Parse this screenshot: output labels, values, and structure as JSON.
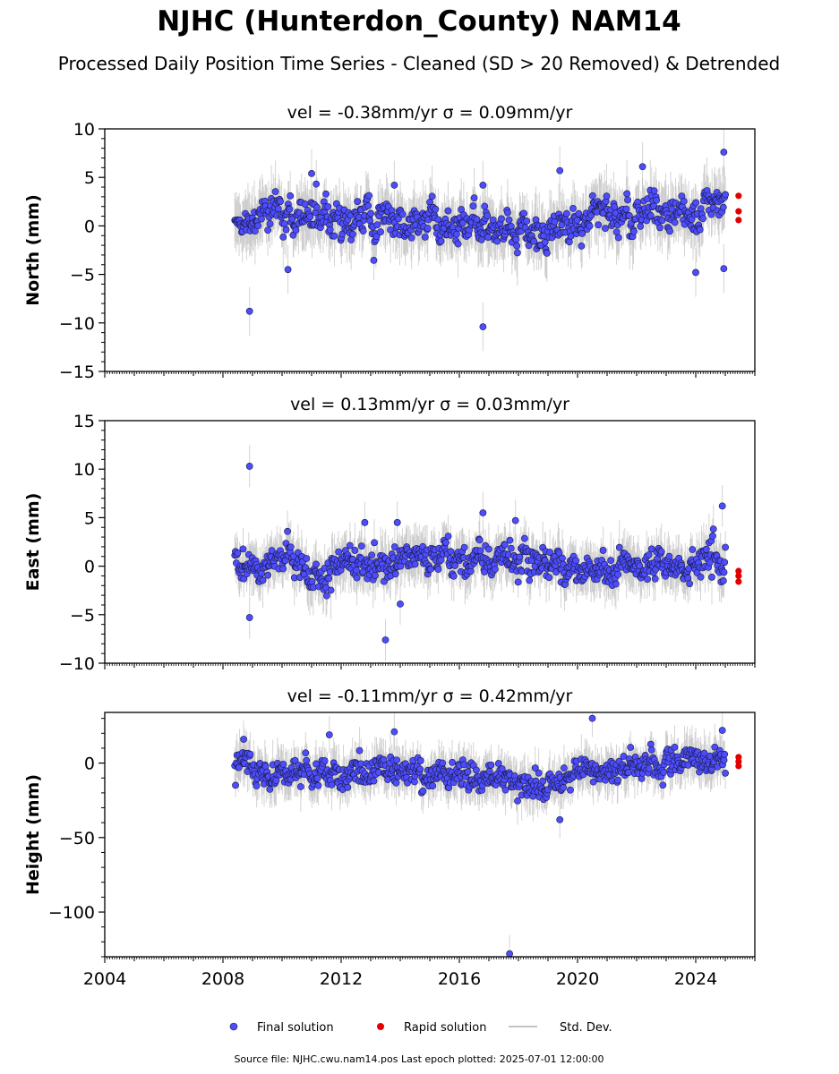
{
  "figure": {
    "title": "NJHC (Hunterdon_County) NAM14",
    "subtitle": "Processed Daily Position Time Series - Cleaned (SD > 20 Removed) & Detrended",
    "footer": "Source file: NJHC.cwu.nam14.pos  Last epoch plotted: 2025-07-01 12:00:00"
  },
  "legend": {
    "final": "Final solution",
    "rapid": "Rapid solution",
    "std": "Std. Dev."
  },
  "colors": {
    "final_fill": "#4d4dff",
    "final_edge": "#1a1a40",
    "rapid": "#e00000",
    "std": "#b0b0b0"
  },
  "chart_data": [
    {
      "type": "scatter",
      "title": "vel = -0.38mm/yr   σ = 0.09mm/yr",
      "ylabel": "North (mm)",
      "xlim": [
        2004.0,
        2026.0
      ],
      "ylim": [
        -15,
        10
      ],
      "yticks": [
        -15,
        -10,
        -5,
        0,
        5,
        10
      ],
      "final_span": [
        2008.4,
        2025.0
      ],
      "final_baseline": [
        [
          2008.4,
          1.0
        ],
        [
          2010.0,
          1.6
        ],
        [
          2012.0,
          0.3
        ],
        [
          2014.0,
          0.1
        ],
        [
          2016.0,
          -0.2
        ],
        [
          2017.5,
          -0.5
        ],
        [
          2019.0,
          -0.6
        ],
        [
          2020.0,
          0.9
        ],
        [
          2022.0,
          1.2
        ],
        [
          2024.0,
          1.1
        ],
        [
          2025.0,
          2.0
        ]
      ],
      "final_spread": 1.4,
      "final_outliers": [
        [
          2008.9,
          -8.8
        ],
        [
          2010.2,
          -4.5
        ],
        [
          2013.8,
          4.2
        ],
        [
          2016.8,
          -10.4
        ],
        [
          2019.4,
          5.7
        ],
        [
          2022.2,
          6.1
        ],
        [
          2024.0,
          -4.8
        ],
        [
          2024.95,
          7.6
        ],
        [
          2024.95,
          -4.4
        ],
        [
          2011.0,
          5.4
        ],
        [
          2016.8,
          4.2
        ]
      ],
      "rapid_points": [
        [
          2025.45,
          3.1
        ],
        [
          2025.45,
          1.5
        ],
        [
          2025.45,
          0.6
        ]
      ]
    },
    {
      "type": "scatter",
      "title": "vel = 0.13mm/yr   σ = 0.03mm/yr",
      "ylabel": "East (mm)",
      "xlim": [
        2004.0,
        2026.0
      ],
      "ylim": [
        -10,
        15
      ],
      "yticks": [
        -10,
        -5,
        0,
        5,
        10,
        15
      ],
      "final_span": [
        2008.4,
        2025.0
      ],
      "final_baseline": [
        [
          2008.4,
          0.0
        ],
        [
          2010.0,
          0.2
        ],
        [
          2012.0,
          0.0
        ],
        [
          2014.0,
          0.3
        ],
        [
          2016.0,
          0.5
        ],
        [
          2017.5,
          0.8
        ],
        [
          2019.0,
          0.6
        ],
        [
          2020.0,
          -0.3
        ],
        [
          2022.0,
          0.0
        ],
        [
          2024.0,
          0.2
        ],
        [
          2025.0,
          0.0
        ]
      ],
      "final_spread": 1.2,
      "final_outliers": [
        [
          2008.9,
          10.3
        ],
        [
          2008.9,
          -5.3
        ],
        [
          2013.5,
          -7.6
        ],
        [
          2013.9,
          4.5
        ],
        [
          2016.8,
          5.5
        ],
        [
          2017.9,
          4.7
        ],
        [
          2024.9,
          6.2
        ],
        [
          2012.8,
          4.5
        ],
        [
          2014.0,
          -3.9
        ]
      ],
      "rapid_points": [
        [
          2025.45,
          -0.5
        ],
        [
          2025.45,
          -1.0
        ],
        [
          2025.45,
          -1.6
        ]
      ]
    },
    {
      "type": "scatter",
      "title": "vel = -0.11mm/yr   σ = 0.42mm/yr",
      "ylabel": "Height (mm)",
      "xlim": [
        2004.0,
        2026.0
      ],
      "ylim": [
        -130,
        34
      ],
      "yticks": [
        -100,
        -50,
        0
      ],
      "xticks": [
        2004,
        2008,
        2012,
        2016,
        2020,
        2024
      ],
      "final_span": [
        2008.4,
        2025.0
      ],
      "final_baseline": [
        [
          2008.4,
          -3
        ],
        [
          2010.0,
          -5
        ],
        [
          2011.5,
          -6
        ],
        [
          2013.0,
          -8
        ],
        [
          2015.0,
          -8
        ],
        [
          2017.0,
          -9
        ],
        [
          2018.5,
          -13
        ],
        [
          2019.5,
          -14
        ],
        [
          2020.5,
          -3
        ],
        [
          2022.0,
          -2
        ],
        [
          2024.0,
          0
        ],
        [
          2025.0,
          3
        ]
      ],
      "final_spread": 7,
      "final_outliers": [
        [
          2008.7,
          16
        ],
        [
          2011.6,
          19
        ],
        [
          2013.8,
          21
        ],
        [
          2020.5,
          30
        ],
        [
          2019.4,
          -38
        ],
        [
          2017.7,
          -128
        ],
        [
          2024.9,
          22
        ]
      ],
      "rapid_points": [
        [
          2025.45,
          4
        ],
        [
          2025.45,
          1
        ],
        [
          2025.45,
          -2
        ]
      ]
    }
  ]
}
